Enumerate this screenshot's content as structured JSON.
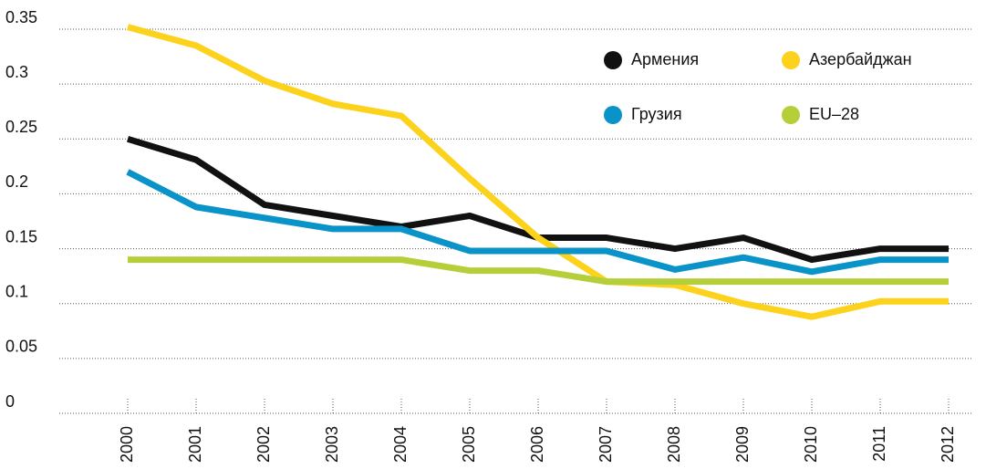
{
  "chart_data": {
    "type": "line",
    "x": [
      2000,
      2001,
      2002,
      2003,
      2004,
      2005,
      2006,
      2007,
      2008,
      2009,
      2010,
      2011,
      2012
    ],
    "xlim": [
      2000,
      2012
    ],
    "xticks": [
      2000,
      2001,
      2002,
      2003,
      2004,
      2005,
      2006,
      2007,
      2008,
      2009,
      2010,
      2011,
      2012
    ],
    "series": [
      {
        "name": "Армения",
        "color": "#111111",
        "values": [
          0.25,
          0.231,
          0.19,
          0.18,
          0.17,
          0.18,
          0.16,
          0.16,
          0.15,
          0.16,
          0.14,
          0.15,
          0.15
        ]
      },
      {
        "name": "Азербайджан",
        "color": "#fcd21c",
        "values": [
          0.352,
          0.335,
          0.303,
          0.282,
          0.271,
          0.214,
          0.16,
          0.12,
          0.117,
          0.1,
          0.088,
          0.102,
          0.102
        ]
      },
      {
        "name": "Грузия",
        "color": "#0a93c8",
        "values": [
          0.22,
          0.188,
          0.178,
          0.168,
          0.168,
          0.148,
          0.148,
          0.148,
          0.131,
          0.142,
          0.129,
          0.14,
          0.14
        ]
      },
      {
        "name": "EU–28",
        "color": "#b5cf3a",
        "values": [
          0.14,
          0.14,
          0.14,
          0.14,
          0.14,
          0.13,
          0.13,
          0.12,
          0.12,
          0.12,
          0.12,
          0.12,
          0.12
        ]
      }
    ],
    "ylim": [
      0,
      0.35
    ],
    "yticks": [
      0,
      0.05,
      0.1,
      0.15,
      0.2,
      0.25,
      0.3,
      0.35
    ],
    "grid": true,
    "legend": "upper right"
  }
}
